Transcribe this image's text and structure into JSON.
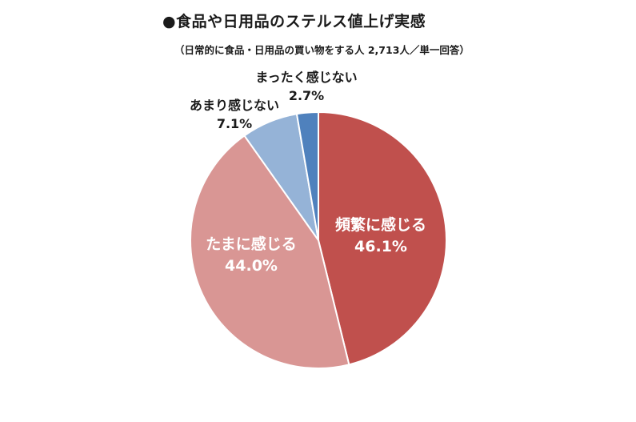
{
  "chart_data": {
    "type": "pie",
    "title": "●食品や日用品のステルス値上げ実感",
    "subtitle": "（日常的に食品・日用品の買い物をする人 2,713人／単一回答）",
    "slices": [
      {
        "label": "頻繁に感じる",
        "value": 46.1,
        "value_label": "46.1%",
        "color": "#c0504d"
      },
      {
        "label": "たまに感じる",
        "value": 44.0,
        "value_label": "44.0%",
        "color": "#d99694"
      },
      {
        "label": "あまり感じない",
        "value": 7.1,
        "value_label": "7.1%",
        "color": "#95b3d7"
      },
      {
        "label": "まったく感じない",
        "value": 2.7,
        "value_label": "2.7%",
        "color": "#4f81bd"
      }
    ],
    "start": "12 o'clock",
    "direction": "clockwise"
  }
}
